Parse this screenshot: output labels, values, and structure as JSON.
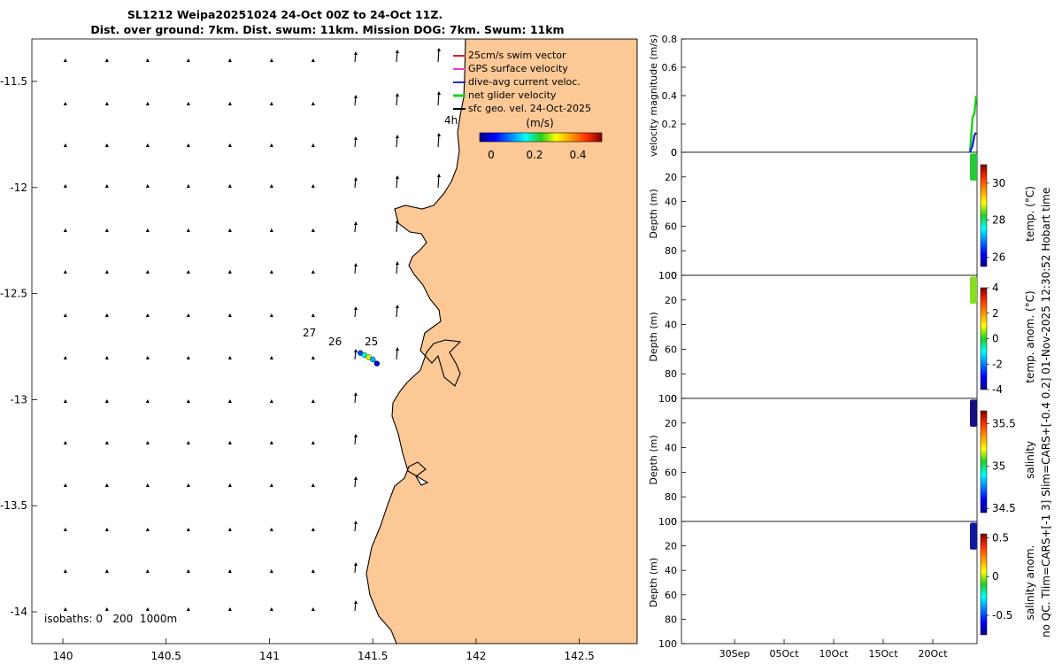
{
  "title_lines": [
    "SL1212 Weipa20251024 24-Oct 00Z to 24-Oct 11Z.",
    "Dist. over ground: 7km. Dist. swum: 11km. Mission DOG: 7km. Swum: 11km"
  ],
  "colors": {
    "land": "#fbc896",
    "swim_vector": "#e0201c",
    "gps_velocity": "#e040e0",
    "dive_avg_current": "#2030d0",
    "net_glider_velocity": "#20d020",
    "sfc_geo_vel": "#000000"
  },
  "chart_data": [
    {
      "id": "map",
      "type": "scatter",
      "x": {
        "ticks": [
          140,
          140.5,
          141,
          141.5,
          142,
          142.5
        ],
        "tick_labels": [
          "140",
          "140.5",
          "141",
          "141.5",
          "142",
          "142.5"
        ],
        "range": [
          139.85,
          142.78
        ]
      },
      "y": {
        "ticks": [
          -11.5,
          -12,
          -12.5,
          -13,
          -13.5,
          -14
        ],
        "tick_labels": [
          "-11.5",
          "-12",
          "-12.5",
          "-13",
          "-13.5",
          "-14"
        ],
        "range": [
          -14.15,
          -11.3
        ]
      },
      "legend": {
        "placement": "top-right",
        "entries": [
          "25cm/s swim vector",
          "GPS surface velocity",
          "dive-avg current veloc.",
          "net glider velocity",
          "sfc geo. vel. 24-Oct-2025"
        ]
      },
      "colorbar": {
        "label": "(m/s)",
        "ticks": [
          "0",
          "0.2",
          "0.4"
        ],
        "range": [
          0,
          0.5
        ]
      },
      "annotations": [
        "27",
        "26",
        "25",
        "4h"
      ],
      "isobaths_label": "isobaths: 0   200  1000m",
      "glider_track": {
        "lon": [
          141.44,
          141.46,
          141.48,
          141.5,
          141.52
        ],
        "lat": [
          -12.78,
          -12.79,
          -12.8,
          -12.81,
          -12.83
        ],
        "speed": [
          0.1,
          0.2,
          0.3,
          0.15,
          0.05
        ]
      }
    },
    {
      "id": "velocity",
      "type": "line",
      "ylabel": "velocity magnitude (m/s)",
      "y": {
        "ticks": [
          "0",
          "0.2",
          "0.4",
          "0.6",
          "0.8"
        ],
        "range": [
          0,
          0.8
        ]
      },
      "x_date_ticks": [
        "30Sep",
        "05Oct",
        "10Oct",
        "15Oct",
        "20Oct"
      ],
      "series": [
        {
          "name": "net glider velocity",
          "color": "#20d020",
          "values": [
            0.0,
            0.25,
            0.27,
            0.4
          ]
        },
        {
          "name": "dive-avg current veloc.",
          "color": "#2030d0",
          "values": [
            0.0,
            0.05,
            0.12,
            0.14
          ]
        }
      ]
    },
    {
      "id": "temperature",
      "type": "scatter",
      "ylabel": "Depth (m)",
      "y": {
        "ticks": [
          "0",
          "20",
          "40",
          "60",
          "80",
          "100"
        ],
        "range": [
          0,
          100
        ],
        "reversed": true
      },
      "colorbar": {
        "label": "temp. (°C)",
        "ticks": [
          "26",
          "28",
          "30"
        ],
        "range": [
          25.5,
          31
        ]
      },
      "data_depth_range": [
        1,
        23
      ]
    },
    {
      "id": "temperature_anomaly",
      "type": "scatter",
      "ylabel": "Depth (m)",
      "y": {
        "ticks": [
          "0",
          "20",
          "40",
          "60",
          "80",
          "100"
        ],
        "range": [
          0,
          100
        ],
        "reversed": true
      },
      "colorbar": {
        "label": "temp. anom. (°C)",
        "ticks": [
          "-4",
          "-2",
          "0",
          "2",
          "4"
        ],
        "range": [
          -4,
          4
        ]
      },
      "data_depth_range": [
        1,
        23
      ]
    },
    {
      "id": "salinity",
      "type": "scatter",
      "ylabel": "Depth (m)",
      "y": {
        "ticks": [
          "0",
          "20",
          "40",
          "60",
          "80",
          "100"
        ],
        "range": [
          0,
          100
        ],
        "reversed": true
      },
      "colorbar": {
        "label": "salinity",
        "ticks": [
          "34.5",
          "35",
          "35.5"
        ],
        "range": [
          34.45,
          35.65
        ]
      },
      "data_depth_range": [
        1,
        23
      ]
    },
    {
      "id": "salinity_anomaly",
      "type": "scatter",
      "ylabel": "Depth (m)",
      "y": {
        "ticks": [
          "0",
          "20",
          "40",
          "60",
          "80",
          "100"
        ],
        "range": [
          0,
          100
        ],
        "reversed": true
      },
      "colorbar": {
        "label": "salinity anom.",
        "ticks": [
          "-0.5",
          "0",
          "0.5"
        ],
        "range": [
          -0.75,
          0.55
        ]
      },
      "data_depth_range": [
        1,
        23
      ]
    }
  ],
  "side_notes": [
    "no QC. Tlim=CARS+[-1 3] Slim=CARS+[-0.4 0.2] 01-Nov-2025 12:30:52 Hobart time"
  ]
}
